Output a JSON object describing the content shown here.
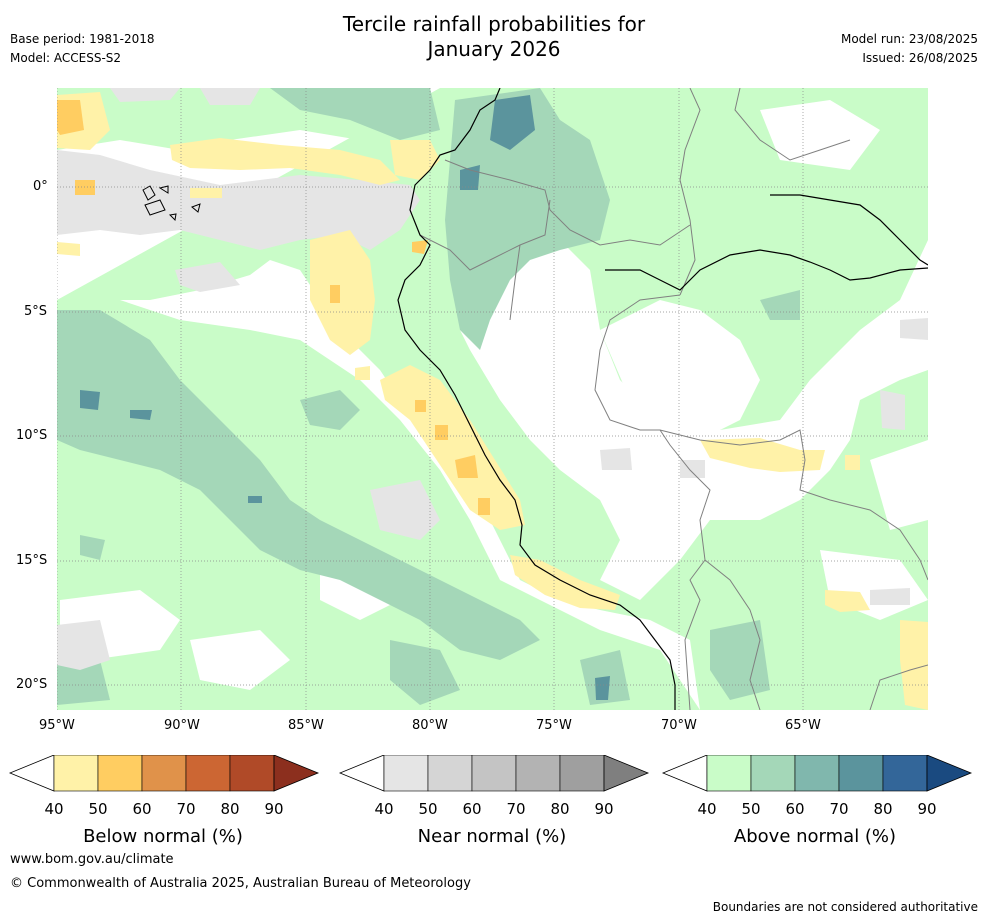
{
  "header": {
    "title_line1": "Tercile rainfall probabilities for",
    "title_line2": "January 2026",
    "base_period": "Base period: 1981-2018",
    "model": "Model: ACCESS-S2",
    "model_run": "Model run: 23/08/2025",
    "issued": "Issued: 26/08/2025"
  },
  "map": {
    "lon_labels": [
      "95°W",
      "90°W",
      "85°W",
      "80°W",
      "75°W",
      "70°W",
      "65°W"
    ],
    "lat_labels": [
      "0°",
      "5°S",
      "10°S",
      "15°S",
      "20°S"
    ],
    "lon_range": [
      -95,
      -60
    ],
    "lat_range": [
      -21,
      4
    ],
    "gridlines": true
  },
  "colorbars": [
    {
      "name": "below",
      "label": "Below normal (%)",
      "ticks": [
        "40",
        "50",
        "60",
        "70",
        "80",
        "90"
      ],
      "colors": [
        "#fff2a8",
        "#ffcd61",
        "#e0924a",
        "#cc6633",
        "#b04a28",
        "#8c2f1e"
      ]
    },
    {
      "name": "near",
      "label": "Near normal (%)",
      "ticks": [
        "40",
        "50",
        "60",
        "70",
        "80",
        "90"
      ],
      "colors": [
        "#e5e5e5",
        "#d5d5d5",
        "#c4c4c4",
        "#b3b3b3",
        "#9f9f9f",
        "#7f7f7f"
      ]
    },
    {
      "name": "above",
      "label": "Above normal (%)",
      "ticks": [
        "40",
        "50",
        "60",
        "70",
        "80",
        "90"
      ],
      "colors": [
        "#c9fcc8",
        "#a4d7b8",
        "#80b7ad",
        "#5b949d",
        "#336699",
        "#1a4a80"
      ]
    }
  ],
  "footer": {
    "website": "www.bom.gov.au/climate",
    "copyright": "© Commonwealth of Australia 2025, Australian Bureau of Meteorology",
    "disclaimer": "Boundaries are not considered authoritative"
  }
}
